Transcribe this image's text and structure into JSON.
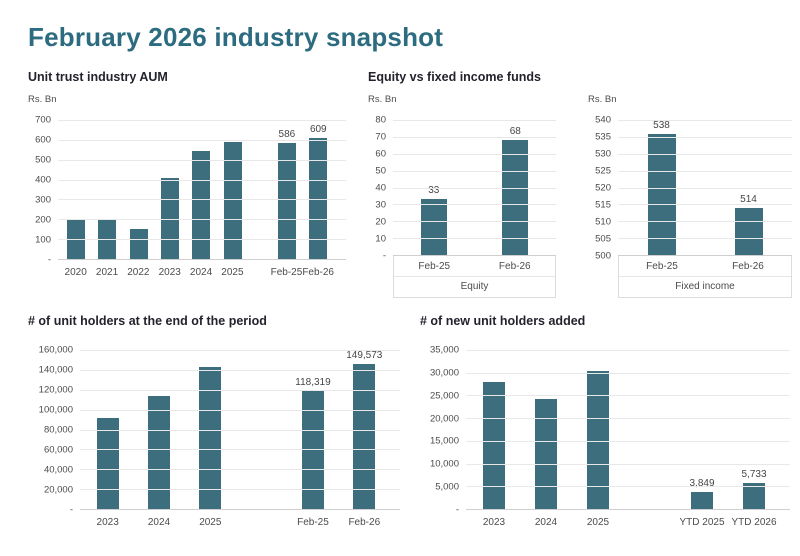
{
  "page_title": "February 2026 industry snapshot",
  "colors": {
    "bar": "#3d6e7e",
    "page_title": "#2d6c80",
    "chart_title": "#23232e",
    "axis_text": "#4d4a4d",
    "gridline": "#e8e8e8"
  },
  "chart_data": [
    {
      "id": "aum",
      "type": "bar",
      "title": "Unit trust industry AUM",
      "ylabel": "Rs. Bn",
      "ylim": [
        0,
        700
      ],
      "yticks": [
        "700",
        "600",
        "500",
        "400",
        "300",
        "200",
        "100",
        "-"
      ],
      "grid": true,
      "bars": [
        {
          "category": "2020",
          "value": 200
        },
        {
          "category": "2021",
          "value": 197
        },
        {
          "category": "2022",
          "value": 150
        },
        {
          "category": "2023",
          "value": 410
        },
        {
          "category": "2024",
          "value": 545
        },
        {
          "category": "2025",
          "value": 590
        },
        {
          "category": "Feb-25",
          "value": 586,
          "label": "586",
          "gap_before": true
        },
        {
          "category": "Feb-26",
          "value": 609,
          "label": "609"
        }
      ]
    },
    {
      "id": "equity",
      "type": "bar",
      "title": "Equity vs fixed income funds",
      "ylabel": "Rs. Bn",
      "ylim": [
        0,
        80
      ],
      "yticks": [
        "80",
        "70",
        "60",
        "50",
        "40",
        "30",
        "20",
        "10",
        "-"
      ],
      "grid": true,
      "group_label": "Equity",
      "bars": [
        {
          "category": "Feb-25",
          "value": 33,
          "label": "33"
        },
        {
          "category": "Feb-26",
          "value": 68,
          "label": "68"
        }
      ]
    },
    {
      "id": "fixed_income",
      "type": "bar",
      "title": "",
      "ylabel": "Rs. Bn",
      "ylim": [
        500,
        540
      ],
      "yticks": [
        "540",
        "535",
        "530",
        "525",
        "520",
        "515",
        "510",
        "505",
        "500"
      ],
      "grid": true,
      "group_label": "Fixed income",
      "bars": [
        {
          "category": "Feb-25",
          "value": 538,
          "label": "538"
        },
        {
          "category": "Feb-26",
          "value": 514,
          "label": "514"
        }
      ]
    },
    {
      "id": "unit_holders",
      "type": "bar",
      "title": "# of unit holders at the end of the period",
      "ylabel": "",
      "ylim": [
        0,
        160000
      ],
      "yticks": [
        "160,000",
        "140,000",
        "120,000",
        "100,000",
        "80,000",
        "60,000",
        "40,000",
        "20,000",
        "-"
      ],
      "grid": true,
      "bars": [
        {
          "category": "2023",
          "value": 92000
        },
        {
          "category": "2024",
          "value": 113500
        },
        {
          "category": "2025",
          "value": 142500
        },
        {
          "category": "Feb-25",
          "value": 118319,
          "label": "118,319",
          "gap_before": true
        },
        {
          "category": "Feb-26",
          "value": 149573,
          "label": "149,573"
        }
      ]
    },
    {
      "id": "new_unit_holders",
      "type": "bar",
      "title": "# of new unit holders added",
      "ylabel": "",
      "ylim": [
        0,
        35000
      ],
      "yticks": [
        "35,000",
        "30,000",
        "25,000",
        "20,000",
        "15,000",
        "10,000",
        "5,000",
        "-"
      ],
      "grid": true,
      "bars": [
        {
          "category": "2023",
          "value": 27900
        },
        {
          "category": "2024",
          "value": 24200
        },
        {
          "category": "2025",
          "value": 30400
        },
        {
          "category": "YTD 2025",
          "value": 3849,
          "label": "3,849",
          "gap_before": true
        },
        {
          "category": "YTD 2026",
          "value": 5733,
          "label": "5,733"
        }
      ]
    }
  ]
}
